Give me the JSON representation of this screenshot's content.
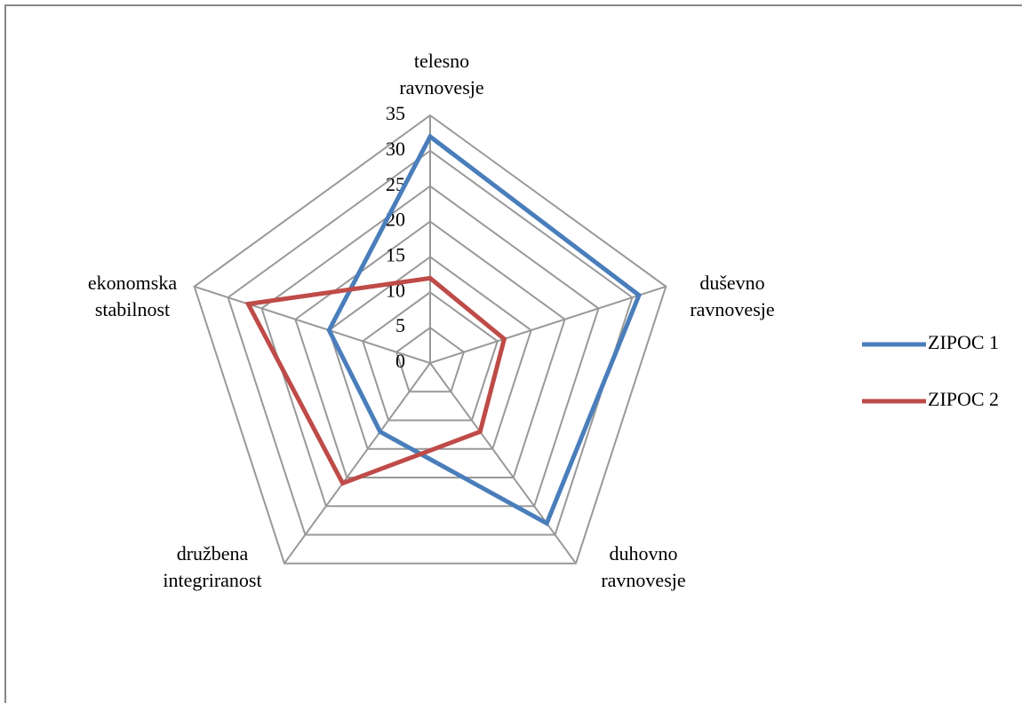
{
  "chart_data": {
    "type": "radar",
    "categories": [
      "telesno ravnovesje",
      "duševno ravnovesje",
      "duhovno ravnovesje",
      "družbena integriranost",
      "ekonomska stabilnost"
    ],
    "series": [
      {
        "name": "ZIPOC 1",
        "color": "#4a7ebb",
        "values": [
          32,
          31,
          28,
          12,
          15
        ]
      },
      {
        "name": "ZIPOC 2",
        "color": "#be4b48",
        "values": [
          12,
          11,
          12,
          21,
          27
        ]
      }
    ],
    "ylim": [
      0,
      35
    ],
    "yticks": [
      0,
      5,
      10,
      15,
      20,
      25,
      30,
      35
    ],
    "grid": true,
    "legend": "right"
  }
}
